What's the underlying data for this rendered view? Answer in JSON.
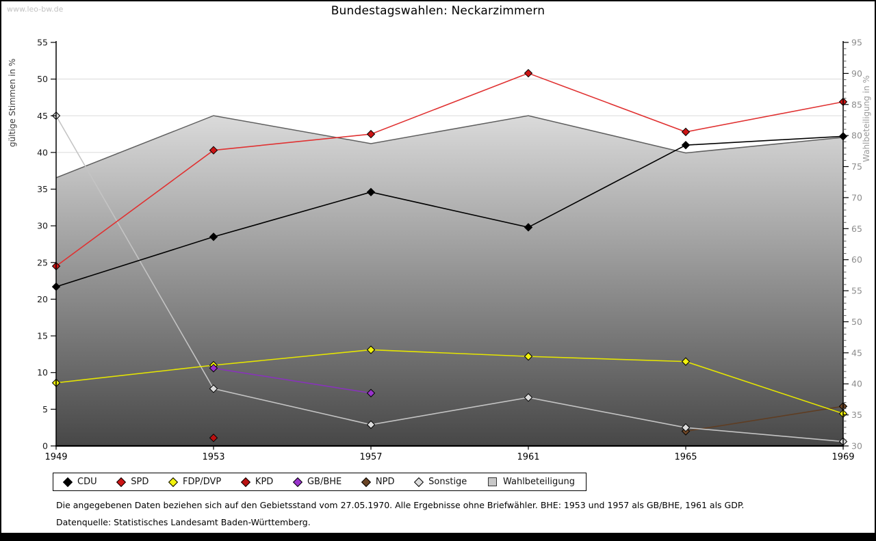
{
  "watermark": "www.leo-bw.de",
  "title": "Bundestagswahlen: Neckarzimmern",
  "footer": {
    "note": "Die angegebenen Daten beziehen sich auf den Gebietsstand vom 27.05.1970. Alle Ergebnisse ohne Briefwähler. BHE: 1953 und 1957 als GB/BHE, 1961 als GDP.",
    "source": "Datenquelle: Statistisches Landesamt Baden-Württemberg."
  },
  "chart_data": {
    "type": "line",
    "title": "Bundestagswahlen: Neckarzimmern",
    "x": [
      1949,
      1953,
      1957,
      1961,
      1965,
      1969
    ],
    "axes": {
      "left": {
        "label": "gültige Stimmen in %",
        "min": 0,
        "max": 55,
        "tick_step": 5,
        "tick_color": "#1a1a1a"
      },
      "right": {
        "label": "Wahlbeteiligung in %",
        "min": 30,
        "max": 95,
        "tick_step": 5,
        "minor_step": 1,
        "tick_color": "#8c8c8c"
      }
    },
    "grid": {
      "on": true,
      "color": "#dadada"
    },
    "legend_position": "bottom",
    "series": [
      {
        "name": "CDU",
        "axis": "left",
        "style": "line",
        "marker": "diamond",
        "line_color": "#000000",
        "fill_color": "#000000",
        "z": 8,
        "values": [
          21.7,
          28.5,
          34.6,
          29.8,
          41.0,
          42.2
        ]
      },
      {
        "name": "SPD",
        "axis": "left",
        "style": "line",
        "marker": "diamond",
        "line_color": "#e03131",
        "fill_color": "#cc1414",
        "z": 7,
        "values": [
          24.5,
          40.3,
          42.5,
          50.8,
          42.8,
          46.9
        ]
      },
      {
        "name": "FDP/DVP",
        "axis": "left",
        "style": "line",
        "marker": "diamond",
        "line_color": "#e6e600",
        "fill_color": "#f2f20d",
        "z": 5,
        "values": [
          8.6,
          11.0,
          13.1,
          12.2,
          11.5,
          4.4
        ]
      },
      {
        "name": "KPD",
        "axis": "left",
        "style": "line",
        "marker": "diamond",
        "line_color": "#a50d0d",
        "fill_color": "#bb1111",
        "z": 4,
        "values": [
          null,
          1.1,
          null,
          null,
          null,
          null
        ]
      },
      {
        "name": "GB/BHE",
        "axis": "left",
        "style": "line",
        "marker": "diamond",
        "line_color": "#8833bb",
        "fill_color": "#9933cc",
        "z": 6,
        "values": [
          null,
          10.6,
          7.2,
          null,
          null,
          null
        ]
      },
      {
        "name": "NPD",
        "axis": "left",
        "style": "line",
        "marker": "diamond",
        "line_color": "#5f3d22",
        "fill_color": "#6b4526",
        "z": 2,
        "values": [
          null,
          null,
          null,
          null,
          2.0,
          5.4
        ]
      },
      {
        "name": "Sonstige",
        "axis": "left",
        "style": "line",
        "marker": "diamond",
        "line_color": "#c4c4c4",
        "fill_color": "#dcdcdc",
        "z": 3,
        "values": [
          45.0,
          7.8,
          2.9,
          6.6,
          2.5,
          0.6
        ]
      },
      {
        "name": "Wahlbeteiligung",
        "axis": "right",
        "style": "area",
        "marker": "square",
        "line_color": "#5f5f5f",
        "fill_color": "#c8c8c8",
        "fill_gradient_top": "#fbfbfb",
        "fill_gradient_bottom": "#474747",
        "z": 1,
        "values": [
          73.2,
          83.2,
          78.7,
          83.2,
          77.2,
          79.7
        ]
      }
    ]
  }
}
